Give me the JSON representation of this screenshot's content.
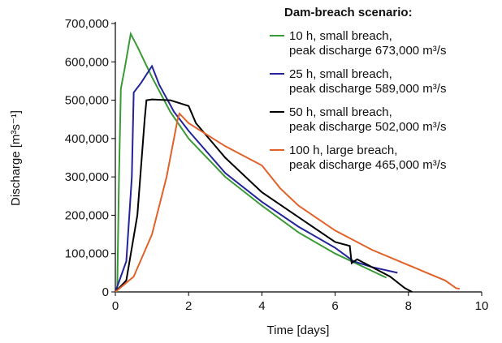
{
  "chart_data": {
    "type": "line",
    "x_label": "Time [days]",
    "y_label": "Discharge [m³s⁻¹]",
    "legend_title": "Dam-breach scenario:",
    "legend_position": "upper right",
    "xlim": [
      0,
      10
    ],
    "xticks": [
      0,
      2,
      4,
      6,
      8,
      10
    ],
    "ylim": [
      0,
      700000
    ],
    "yticks": [
      {
        "value": 0,
        "label": "0"
      },
      {
        "value": 100000,
        "label": "100,000"
      },
      {
        "value": 200000,
        "label": "200,000"
      },
      {
        "value": 300000,
        "label": "300,000"
      },
      {
        "value": 400000,
        "label": "400,000"
      },
      {
        "value": 500000,
        "label": "500,000"
      },
      {
        "value": 600000,
        "label": "600,000"
      },
      {
        "value": 700000,
        "label": "700,000"
      }
    ],
    "series": [
      {
        "name": "10 h, small breach,\npeak discharge 673,000 m³/s",
        "color": "#3a9a35",
        "x": [
          0.05,
          0.1,
          0.15,
          0.25,
          0.42,
          0.6,
          1,
          1.5,
          2,
          3,
          4,
          5,
          6,
          7,
          7.4
        ],
        "values": [
          0,
          300000,
          530000,
          580000,
          673000,
          640000,
          560000,
          470000,
          400000,
          300000,
          225000,
          155000,
          100000,
          55000,
          37000
        ]
      },
      {
        "name": "25 h, small breach,\npeak discharge 589,000 m³/s",
        "color": "#24249a",
        "x": [
          0,
          0.3,
          0.45,
          0.5,
          0.7,
          1.0,
          1.2,
          1.6,
          2,
          3,
          4,
          5,
          6,
          6.5,
          7,
          7.7
        ],
        "values": [
          0,
          80000,
          300000,
          520000,
          545000,
          589000,
          540000,
          470000,
          420000,
          310000,
          235000,
          170000,
          115000,
          80000,
          65000,
          50000
        ]
      },
      {
        "name": "50 h, small breach,\npeak discharge 502,000 m³/s",
        "color": "#000000",
        "x": [
          0,
          0.3,
          0.6,
          0.8,
          0.85,
          1,
          1.5,
          2,
          2.2,
          3,
          4,
          5,
          6,
          6.4,
          6.45,
          6.6,
          7,
          7.5,
          7.9,
          8.1
        ],
        "values": [
          0,
          30000,
          200000,
          450000,
          500000,
          502000,
          500000,
          485000,
          440000,
          350000,
          260000,
          195000,
          130000,
          120000,
          75000,
          85000,
          65000,
          40000,
          10000,
          0
        ]
      },
      {
        "name": "100 h, large breach,\npeak discharge 465,000 m³/s",
        "color": "#e0622a",
        "x": [
          0,
          0.5,
          1,
          1.4,
          1.7,
          1.75,
          2,
          3,
          4,
          4.5,
          5,
          6,
          7,
          8,
          8.5,
          9,
          9.3,
          9.4
        ],
        "values": [
          0,
          40000,
          150000,
          300000,
          450000,
          465000,
          440000,
          380000,
          330000,
          270000,
          225000,
          160000,
          110000,
          70000,
          50000,
          30000,
          10000,
          8000
        ]
      }
    ]
  }
}
